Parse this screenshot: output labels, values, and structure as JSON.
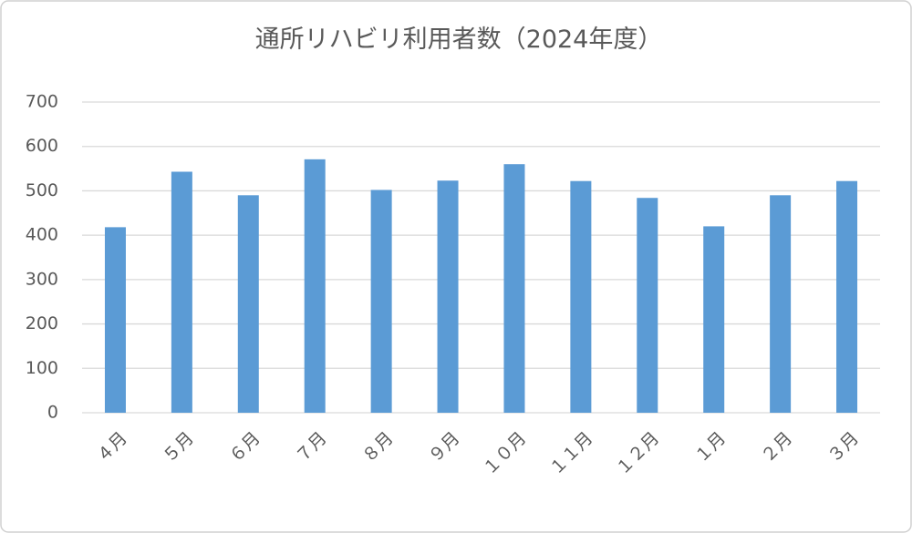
{
  "chart_data": {
    "type": "bar",
    "title": "通所リハビリ利用者数（2024年度）",
    "categories": [
      "４月",
      "５月",
      "６月",
      "７月",
      "８月",
      "９月",
      "１０月",
      "１１月",
      "１２月",
      "１月",
      "２月",
      "３月"
    ],
    "values": [
      418,
      543,
      490,
      571,
      502,
      523,
      560,
      522,
      484,
      420,
      490,
      522
    ],
    "color": "#5b9bd5",
    "ylim": [
      0,
      700
    ],
    "yticks": [
      0,
      100,
      200,
      300,
      400,
      500,
      600,
      700
    ],
    "grid": true
  }
}
